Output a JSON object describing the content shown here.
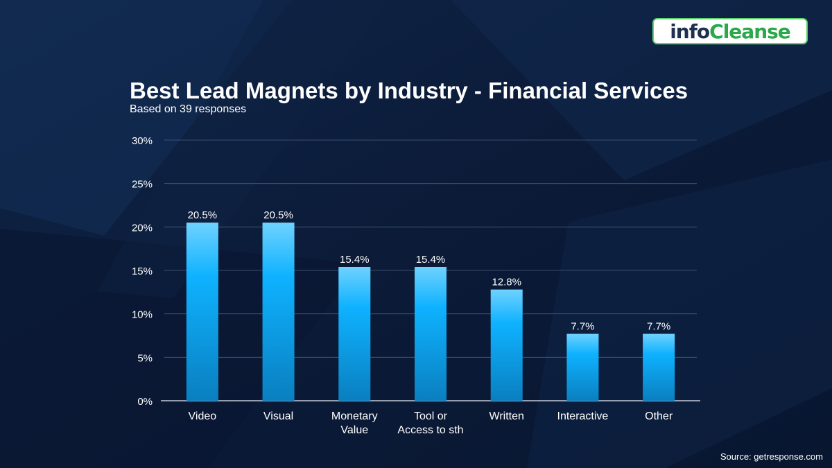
{
  "brand": {
    "logo_part1": "info",
    "logo_part2": "Cleanse",
    "logo_border_color": "#5fd36b",
    "logo_accent_color": "#2aa84a"
  },
  "chart_data": {
    "type": "bar",
    "title": "Best Lead Magnets by Industry - Financial Services",
    "subtitle": "Based on 39 responses",
    "categories": [
      [
        "Video"
      ],
      [
        "Visual"
      ],
      [
        "Monetary",
        "Value"
      ],
      [
        "Tool or",
        "Access to sth"
      ],
      [
        "Written"
      ],
      [
        "Interactive"
      ],
      [
        "Other"
      ]
    ],
    "values": [
      20.5,
      20.5,
      15.4,
      15.4,
      12.8,
      7.7,
      7.7
    ],
    "data_labels": [
      "20.5%",
      "20.5%",
      "15.4%",
      "15.4%",
      "12.8%",
      "7.7%",
      "7.7%"
    ],
    "y_ticks": [
      0,
      5,
      10,
      15,
      20,
      25,
      30
    ],
    "y_tick_labels": [
      "0%",
      "5%",
      "10%",
      "15%",
      "20%",
      "25%",
      "30%"
    ],
    "ylim": [
      0,
      30
    ],
    "xlabel": "",
    "ylabel": "",
    "grid": true,
    "bar_color_top": "#6fd2ff",
    "bar_color_mid": "#0fb2ff",
    "bar_color_bottom": "#0a7fc0"
  },
  "source": "Source: getresponse.com"
}
